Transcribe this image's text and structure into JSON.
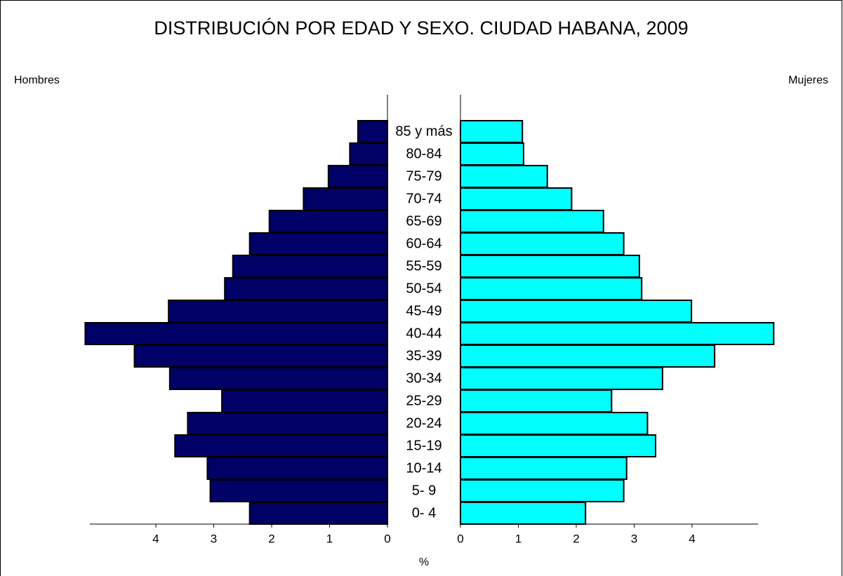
{
  "chart_data": {
    "type": "pyramid",
    "title": "DISTRIBUCIÓN POR EDAD Y SEXO. CIUDAD HABANA, 2009",
    "x_label": "%",
    "categories": [
      "85 y más",
      "80-84",
      "75-79",
      "70-74",
      "65-69",
      "60-64",
      "55-59",
      "50-54",
      "45-49",
      "40-44",
      "35-39",
      "30-34",
      "25-29",
      "20-24",
      "15-19",
      "10-14",
      "5- 9",
      "0- 4"
    ],
    "series": [
      {
        "name": "Hombres",
        "color": "#000066",
        "values": [
          0.51,
          0.65,
          1.02,
          1.45,
          2.04,
          2.38,
          2.67,
          2.81,
          3.78,
          5.22,
          4.37,
          3.76,
          2.86,
          3.45,
          3.67,
          3.11,
          3.06,
          2.38
        ]
      },
      {
        "name": "Mujeres",
        "color": "#00ffff",
        "values": [
          1.07,
          1.09,
          1.5,
          1.92,
          2.47,
          2.82,
          3.09,
          3.13,
          3.99,
          5.41,
          4.39,
          3.49,
          2.61,
          3.23,
          3.37,
          2.87,
          2.82,
          2.16
        ]
      }
    ],
    "xlim": [
      0,
      5.14
    ],
    "xticks": [
      0,
      1,
      2,
      3,
      4
    ]
  }
}
